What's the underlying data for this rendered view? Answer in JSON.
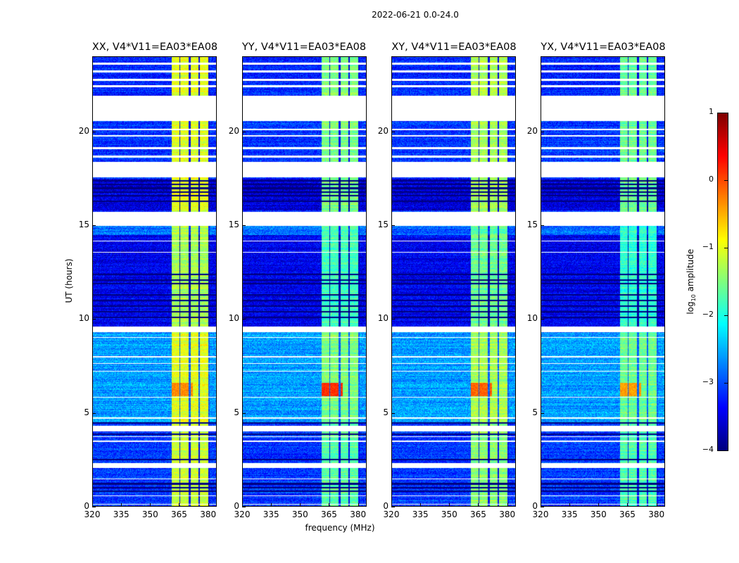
{
  "suptitle": "2022-06-21 0.0-24.0",
  "xlabel": "frequency (MHz)",
  "ylabel": "UT (hours)",
  "colorbar": {
    "label_prefix": "log",
    "label_sub": "10",
    "label_suffix": " amplitude",
    "ticks": [
      "1",
      "0",
      "−1",
      "−2",
      "−3",
      "−4"
    ],
    "range": [
      -4,
      1
    ],
    "colormap": "jet"
  },
  "chart_data": {
    "type": "heatmap",
    "title": "2022-06-21 0.0-24.0",
    "xlabel": "frequency (MHz)",
    "ylabel": "UT (hours)",
    "xlim": [
      320,
      384.5
    ],
    "ylim": [
      0,
      24
    ],
    "xticks": [
      "320",
      "335",
      "350",
      "365",
      "380"
    ],
    "xtick_values": [
      320,
      335,
      350,
      365,
      380
    ],
    "yticks": [
      "0",
      "5",
      "10",
      "15",
      "20"
    ],
    "ytick_values": [
      0,
      5,
      10,
      15,
      20
    ],
    "value_label": "log10 amplitude",
    "value_range": [
      -4,
      1
    ],
    "panels": [
      {
        "title": "XX, V4*V11=EA03*EA08",
        "band_level": -1.0,
        "hotspot_level": -0.3
      },
      {
        "title": "YY, V4*V11=EA03*EA08",
        "band_level": -1.5,
        "hotspot_level": 0.15
      },
      {
        "title": "XY, V4*V11=EA03*EA08",
        "band_level": -1.3,
        "hotspot_level": -0.1
      },
      {
        "title": "YX, V4*V11=EA03*EA08",
        "band_level": -1.6,
        "hotspot_level": -0.4
      }
    ],
    "background_level": -3.1,
    "rfi_bands_mhz": [
      [
        361,
        365
      ],
      [
        365.7,
        370
      ],
      [
        370.9,
        375.2
      ],
      [
        376,
        380.4
      ]
    ],
    "hotspot": {
      "ut": [
        5.9,
        6.6
      ],
      "mhz": [
        361,
        372
      ]
    },
    "flagged_gaps_ut": [
      [
        23.7,
        23.6
      ],
      [
        23.3,
        23.2
      ],
      [
        22.85,
        22.75
      ],
      [
        22.5,
        22.4
      ],
      [
        21.95,
        20.6
      ],
      [
        20.2,
        20.1
      ],
      [
        19.85,
        19.75
      ],
      [
        19.2,
        19.1
      ],
      [
        18.75,
        18.65
      ],
      [
        18.4,
        17.6
      ],
      [
        15.75,
        15.0
      ],
      [
        14.2,
        14.15
      ],
      [
        13.6,
        13.55
      ],
      [
        9.6,
        9.3
      ],
      [
        9.05,
        9.0
      ],
      [
        8.05,
        7.95
      ],
      [
        7.65,
        7.6
      ],
      [
        7.25,
        7.2
      ],
      [
        5.85,
        5.8
      ],
      [
        4.75,
        4.7
      ],
      [
        4.3,
        4.0
      ],
      [
        3.75,
        3.7
      ],
      [
        3.5,
        3.45
      ],
      [
        2.3,
        2.05
      ],
      [
        1.5,
        1.45
      ],
      [
        0.6,
        0.55
      ],
      [
        0.12,
        0.08
      ]
    ],
    "dark_lines_ut": [
      17.4,
      17.2,
      17.0,
      16.8,
      16.6,
      16.3,
      12.4,
      12.1,
      11.9,
      11.3,
      11.0,
      10.7,
      10.4,
      10.1,
      4.45,
      3.85,
      2.5,
      1.2,
      1.0,
      0.8
    ]
  }
}
